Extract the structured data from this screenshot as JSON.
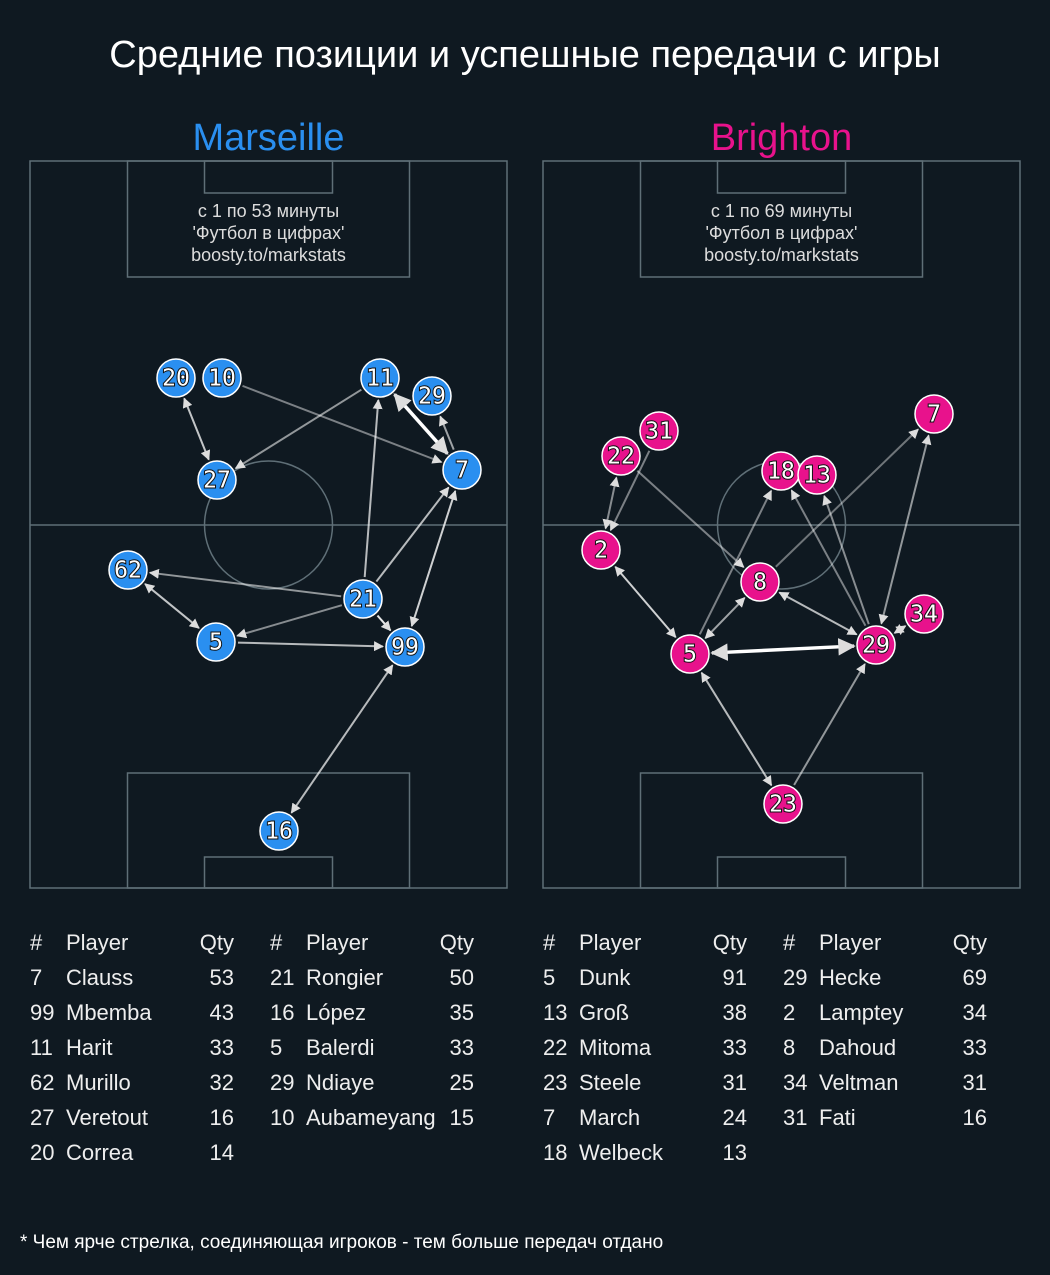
{
  "title": "Средние позиции и успешные передачи с игры",
  "footnote": "* Чем ярче стрелка, соединяющая игроков - тем больше передач отдано",
  "teams": [
    {
      "name": "Marseille",
      "color": "#2a8ff0",
      "caption": [
        "с 1 по 53 минуты",
        "'Футбол в цифрах'",
        "boosty.to/markstats"
      ],
      "nodes": [
        20,
        10,
        11,
        29,
        27,
        7,
        62,
        21,
        5,
        99,
        16
      ],
      "table": [
        {
          "header": [
            "#",
            "Player",
            "Qty"
          ],
          "rows": [
            [
              7,
              "Clauss",
              53
            ],
            [
              99,
              "Mbemba",
              43
            ],
            [
              11,
              "Harit",
              33
            ],
            [
              62,
              "Murillo",
              32
            ],
            [
              27,
              "Veretout",
              16
            ],
            [
              20,
              "Correa",
              14
            ]
          ]
        },
        {
          "header": [
            "#",
            "Player",
            "Qty"
          ],
          "rows": [
            [
              21,
              "Rongier",
              50
            ],
            [
              16,
              "López",
              35
            ],
            [
              5,
              "Balerdi",
              33
            ],
            [
              29,
              "Ndiaye",
              25
            ],
            [
              10,
              "Aubameyang",
              15
            ]
          ]
        }
      ]
    },
    {
      "name": "Brighton",
      "color": "#e8128c",
      "caption": [
        "с 1 по 69 минуты",
        "'Футбол в цифрах'",
        "boosty.to/markstats"
      ],
      "nodes": [
        31,
        22,
        7,
        18,
        13,
        2,
        8,
        34,
        5,
        29,
        23
      ],
      "table": [
        {
          "header": [
            "#",
            "Player",
            "Qty"
          ],
          "rows": [
            [
              5,
              "Dunk",
              91
            ],
            [
              13,
              "Groß",
              38
            ],
            [
              22,
              "Mitoma",
              33
            ],
            [
              23,
              "Steele",
              31
            ],
            [
              7,
              "March",
              24
            ],
            [
              18,
              "Welbeck",
              13
            ]
          ]
        },
        {
          "header": [
            "#",
            "Player",
            "Qty"
          ],
          "rows": [
            [
              29,
              "Hecke",
              69
            ],
            [
              2,
              "Lamptey",
              34
            ],
            [
              8,
              "Dahoud",
              33
            ],
            [
              34,
              "Veltman",
              31
            ],
            [
              31,
              "Fati",
              16
            ]
          ]
        }
      ]
    }
  ]
}
